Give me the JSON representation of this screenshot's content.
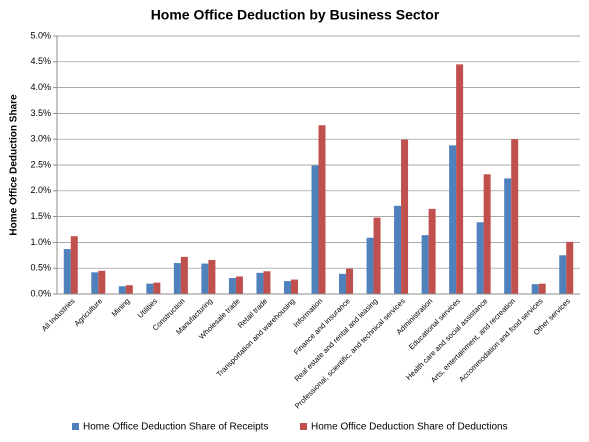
{
  "chart_data": {
    "type": "bar",
    "title": "Home Office Deduction by Business Sector",
    "y_label": "Home Office Deduction Share",
    "categories": [
      "All Industries",
      "Agriculture",
      "Mining",
      "Utilities",
      "Construction",
      "Manufacturing",
      "Wholesale trade",
      "Retail trade",
      "Transportation and warehousing",
      "Information",
      "Finance and insurance",
      "Real estate and rental and leasing",
      "Professional, scientific, and technical services",
      "Administration",
      "Educational services",
      "Health care and social assistance",
      "Arts, entertainment, and recreation",
      "Accommodation and food services",
      "Other services"
    ],
    "series": [
      {
        "name": "Home Office Deduction Share of Receipts",
        "color": "#4f81bd",
        "values": [
          0.87,
          0.42,
          0.15,
          0.2,
          0.6,
          0.59,
          0.31,
          0.41,
          0.25,
          2.49,
          0.39,
          1.09,
          1.71,
          1.14,
          2.88,
          1.39,
          2.24,
          0.19,
          0.75
        ]
      },
      {
        "name": "Home Office Deduction Share of Deductions",
        "color": "#c0504d",
        "values": [
          1.12,
          0.45,
          0.17,
          0.22,
          0.72,
          0.66,
          0.34,
          0.44,
          0.28,
          3.27,
          0.49,
          1.48,
          2.99,
          1.65,
          4.45,
          2.32,
          3.0,
          0.2,
          1.01
        ]
      }
    ],
    "ylim": [
      0,
      5
    ],
    "yticks": [
      {
        "value": 0,
        "label": "0.0%"
      },
      {
        "value": 0.5,
        "label": "0.5%"
      },
      {
        "value": 1,
        "label": "1.0%"
      },
      {
        "value": 1.5,
        "label": "1.5%"
      },
      {
        "value": 2,
        "label": "2.0%"
      },
      {
        "value": 2.5,
        "label": "2.5%"
      },
      {
        "value": 3,
        "label": "3.0%"
      },
      {
        "value": 3.5,
        "label": "3.5%"
      },
      {
        "value": 4,
        "label": "4.0%"
      },
      {
        "value": 4.5,
        "label": "4.5%"
      },
      {
        "value": 5,
        "label": "5.0%"
      }
    ],
    "grid": true
  }
}
